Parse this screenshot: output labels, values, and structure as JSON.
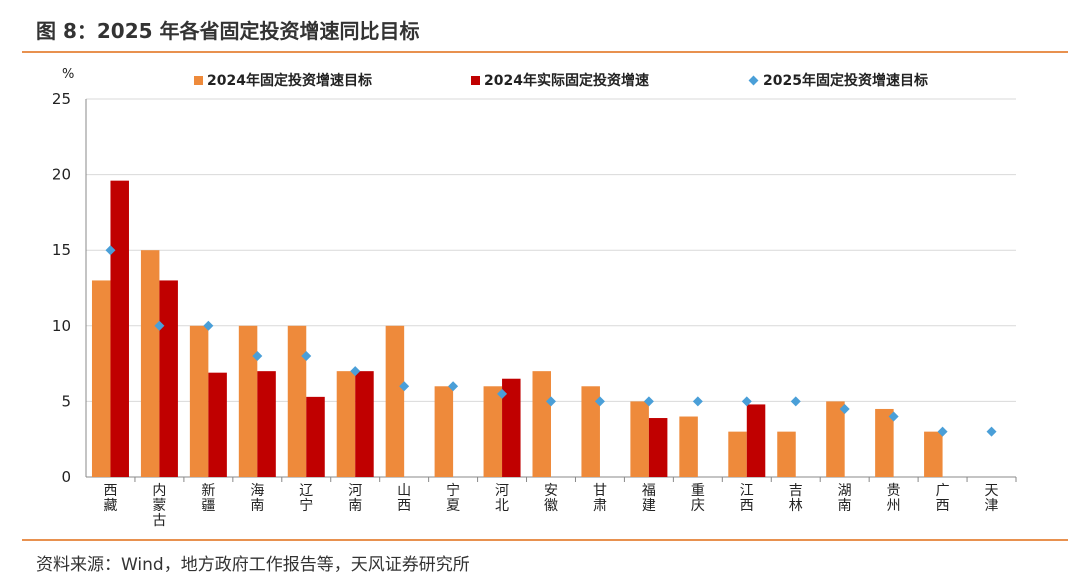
{
  "header": {
    "title": "图 8：2025 年各省固定投资增速同比目标"
  },
  "footer": {
    "source": "资料来源：Wind，地方政府工作报告等，天风证券研究所"
  },
  "colors": {
    "target2024": "#ee8a3b",
    "actual2024": "#c00000",
    "target2025": "#4a9fd8",
    "rule": "#e8914f"
  },
  "chart_data": {
    "type": "bar",
    "unit_label": "%",
    "ylim": [
      0,
      25
    ],
    "yticks": [
      0,
      5,
      10,
      15,
      20,
      25
    ],
    "grid": true,
    "legend_position": "top",
    "categories": [
      "西藏",
      "内蒙古",
      "新疆",
      "海南",
      "辽宁",
      "河南",
      "山西",
      "宁夏",
      "河北",
      "安徽",
      "甘肃",
      "福建",
      "重庆",
      "江西",
      "吉林",
      "湖南",
      "贵州",
      "广西",
      "天津"
    ],
    "series": [
      {
        "name": "2024年固定投资增速目标",
        "kind": "bar",
        "values": [
          13,
          15,
          10,
          10,
          10,
          7,
          10,
          6,
          6,
          7,
          6,
          5,
          4,
          3,
          3,
          5,
          4.5,
          3,
          null
        ]
      },
      {
        "name": "2024年实际固定投资增速",
        "kind": "bar",
        "values": [
          19.6,
          13,
          6.9,
          7,
          5.3,
          7,
          null,
          null,
          6.5,
          null,
          null,
          3.9,
          null,
          4.8,
          null,
          null,
          null,
          null,
          null
        ]
      },
      {
        "name": "2025年固定投资增速目标",
        "kind": "marker",
        "values": [
          15,
          10,
          10,
          8,
          8,
          7,
          6,
          6,
          5.5,
          5,
          5,
          5,
          5,
          5,
          5,
          4.5,
          4,
          3,
          3
        ]
      }
    ]
  }
}
